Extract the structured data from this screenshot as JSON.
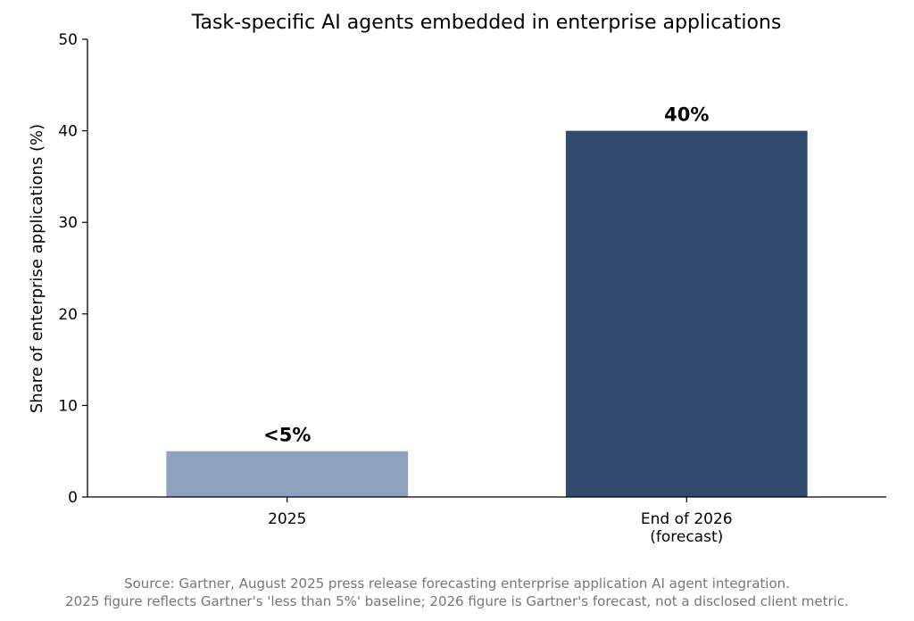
{
  "chart_data": {
    "type": "bar",
    "title": "Task-specific AI agents embedded in enterprise applications",
    "ylabel": "Share of enterprise applications (%)",
    "xlabel": "",
    "ylim": [
      0,
      50
    ],
    "yticks": [
      0,
      10,
      20,
      30,
      40,
      50
    ],
    "categories": [
      {
        "lines": [
          "2025"
        ]
      },
      {
        "lines": [
          "End of 2026",
          "(forecast)"
        ]
      }
    ],
    "values": [
      5,
      40
    ],
    "data_labels": [
      "<5%",
      "40%"
    ],
    "colors": [
      "#8ea2be",
      "#2f4a6d"
    ],
    "grid": false,
    "legend": "none"
  },
  "footnote": {
    "line1": "Source: Gartner, August 2025 press release forecasting enterprise application AI agent integration.",
    "line2": "2025 figure reflects Gartner's 'less than 5%' baseline; 2026 figure is Gartner's forecast, not a disclosed client metric."
  }
}
